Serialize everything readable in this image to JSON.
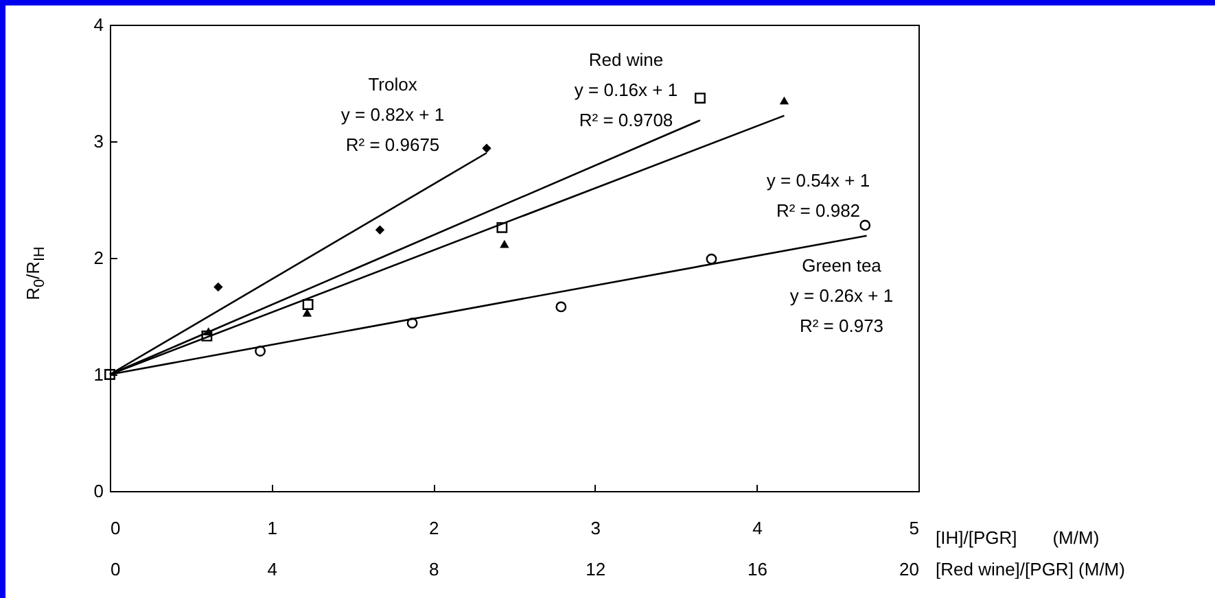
{
  "chart_data": {
    "type": "scatter",
    "xlabel": "[IH]/[PGR]　　(M/M)",
    "x2label": "[Red wine]/[PGR] (M/M)",
    "ylabel": "R$_{0}$/R$_{IH}$",
    "xlim": [
      0,
      5
    ],
    "xticks": [
      0,
      1,
      2,
      3,
      4,
      5
    ],
    "x2lim": [
      0,
      20
    ],
    "x2ticks": [
      0,
      4,
      8,
      12,
      16,
      20
    ],
    "ylim": [
      0,
      4
    ],
    "yticks": [
      0,
      1,
      2,
      3,
      4
    ],
    "annotations": [
      "Trolox\ny = 0.82x + 1\nR² = 0.9675",
      "Red wine\ny = 0.16x + 1\nR² = 0.9708",
      "y = 0.54x + 1\nR² = 0.982",
      "Green tea\ny = 0.26x + 1\nR² = 0.973"
    ],
    "series": [
      {
        "type": "scatter",
        "marker": "diamond",
        "color": "#000000",
        "x": [
          0.67,
          1.67,
          2.33
        ],
        "values": [
          1.75,
          2.24,
          2.94
        ]
      },
      {
        "type": "line",
        "color": "#000000",
        "x": [
          0,
          2.33
        ],
        "values": [
          1,
          2.9
        ]
      },
      {
        "type": "scatter",
        "marker": "triangle",
        "color": "#000000",
        "x": [
          0.61,
          1.22,
          2.44,
          4.17
        ],
        "values": [
          1.37,
          1.53,
          2.12,
          3.35
        ]
      },
      {
        "type": "line",
        "color": "#000000",
        "x": [
          0,
          4.17
        ],
        "values": [
          1,
          3.22
        ]
      },
      {
        "type": "scatter",
        "marker": "circle",
        "color": "#000000",
        "x": [
          0.93,
          1.87,
          2.79,
          3.72,
          4.67
        ],
        "values": [
          1.2,
          1.44,
          1.58,
          1.99,
          2.28
        ]
      },
      {
        "type": "line",
        "color": "#000000",
        "x": [
          0,
          4.68
        ],
        "values": [
          1,
          2.19
        ]
      },
      {
        "type": "scatter",
        "marker": "square",
        "axis": "x2",
        "color": "#000000",
        "x": [
          0,
          2.4,
          4.9,
          9.7,
          14.6
        ],
        "values": [
          1,
          1.33,
          1.6,
          2.26,
          3.37
        ]
      },
      {
        "type": "line",
        "axis": "x2",
        "color": "#000000",
        "x": [
          0,
          14.6
        ],
        "values": [
          1,
          3.18
        ]
      }
    ]
  }
}
